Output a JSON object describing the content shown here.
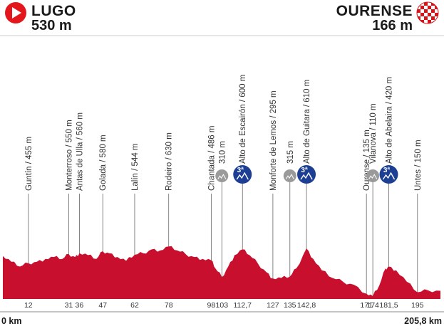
{
  "start": {
    "name": "LUGO",
    "altitude": "530 m",
    "icon": "start-play-icon",
    "color": "#e3161c"
  },
  "finish": {
    "name": "OURENSE",
    "altitude": "166 m",
    "icon": "checkered-flag-icon",
    "color": "#d7141a"
  },
  "axis": {
    "start_label": "0 km",
    "end_label": "205,8 km"
  },
  "profile_color": "#c8102e",
  "waypoints": [
    {
      "label": "Guntín / 455 m",
      "km": 12,
      "km_label": "12"
    },
    {
      "label": "Monterroso / 550 m",
      "km": 31,
      "km_label": "31"
    },
    {
      "label": "Antas de Ulla / 560 m",
      "km": 36,
      "km_label": "36"
    },
    {
      "label": "Golada / 580 m",
      "km": 47,
      "km_label": "47"
    },
    {
      "label": "Lalín / 544 m",
      "km": 62,
      "km_label": "62"
    },
    {
      "label": "Rodeiro / 630 m",
      "km": 78,
      "km_label": "78"
    },
    {
      "label": "Chantada / 486 m",
      "km": 98,
      "km_label": "98"
    },
    {
      "label": "310 m",
      "km": 103,
      "km_label": "103",
      "climb": "sprint",
      "climb_color": "#9a9a9a"
    },
    {
      "label": "Alto de Escairón / 600 m",
      "km": 112.7,
      "km_label": "112,7",
      "climb": "3ª",
      "climb_color": "#1c3f94"
    },
    {
      "label": "Monforte de Lemos / 295 m",
      "km": 127,
      "km_label": "127"
    },
    {
      "label": "315 m",
      "km": 135,
      "km_label": "135",
      "climb": "sprint",
      "climb_color": "#9a9a9a"
    },
    {
      "label": "Alto de Guitara / 610 m",
      "km": 142.8,
      "km_label": "142,8",
      "climb": "3ª",
      "climb_color": "#1c3f94"
    },
    {
      "label": "Ourense / 135 m",
      "km": 171,
      "km_label": "171"
    },
    {
      "label": "Vilanova / 110 m",
      "km": 174,
      "km_label": "174",
      "climb": "sprint",
      "climb_color": "#9a9a9a"
    },
    {
      "label": "Alto de Abelaira / 420 m",
      "km": 181.5,
      "km_label": "181,5",
      "climb": "3ª",
      "climb_color": "#1c3f94"
    },
    {
      "label": "Untes / 150 m",
      "km": 195,
      "km_label": "195"
    }
  ],
  "chart_data": {
    "type": "area",
    "xlabel": "",
    "ylabel": "",
    "x_range_km": [
      0,
      205.8
    ],
    "x": [
      0,
      4,
      8,
      12,
      16,
      20,
      24,
      28,
      31,
      34,
      36,
      40,
      44,
      47,
      50,
      54,
      58,
      62,
      66,
      70,
      74,
      78,
      82,
      86,
      90,
      94,
      98,
      100,
      103,
      106,
      109,
      112.7,
      116,
      120,
      124,
      127,
      131,
      135,
      138,
      142.8,
      146,
      150,
      155,
      160,
      165,
      171,
      174,
      177,
      180,
      181.5,
      185,
      190,
      195,
      200,
      205.8
    ],
    "elevation_m": [
      530,
      470,
      420,
      455,
      470,
      500,
      520,
      500,
      550,
      520,
      560,
      540,
      500,
      580,
      560,
      520,
      480,
      544,
      560,
      600,
      590,
      630,
      590,
      550,
      520,
      500,
      486,
      400,
      310,
      420,
      540,
      600,
      540,
      450,
      360,
      295,
      300,
      315,
      400,
      610,
      500,
      380,
      300,
      260,
      230,
      135,
      110,
      220,
      400,
      420,
      380,
      260,
      150,
      170,
      166
    ]
  }
}
